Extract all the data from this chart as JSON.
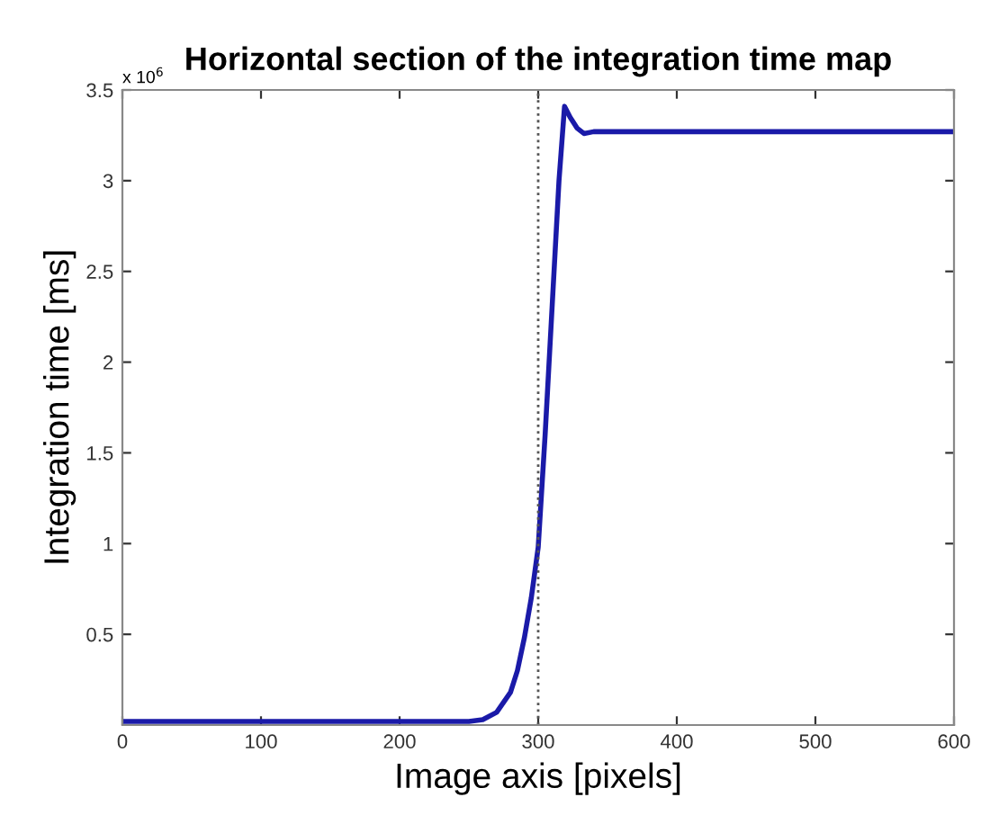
{
  "chart_data": {
    "type": "line",
    "title": "Horizontal section of the integration time map",
    "xlabel": "Image axis [pixels]",
    "ylabel": "Integration time [ms]",
    "annotations": [
      "x 10$^{6}$"
    ],
    "series": [
      {
        "color": "#1a1aa8",
        "x": [
          0,
          100,
          200,
          250,
          260,
          270,
          280,
          285,
          290,
          295,
          300,
          305,
          310,
          315,
          319,
          323,
          328,
          333,
          340,
          400,
          500,
          600
        ],
        "values": [
          0.02,
          0.02,
          0.02,
          0.02,
          0.03,
          0.07,
          0.18,
          0.3,
          0.48,
          0.7,
          0.98,
          1.6,
          2.3,
          3.0,
          3.41,
          3.35,
          3.29,
          3.26,
          3.27,
          3.27,
          3.27,
          3.27
        ]
      }
    ],
    "xlim": [
      0,
      600
    ],
    "ylim": [
      0,
      3.5
    ],
    "xticks": [
      0,
      100,
      200,
      300,
      400,
      500,
      600
    ],
    "yticks": [
      0.5,
      1,
      1.5,
      2,
      2.5,
      3,
      3.5
    ],
    "ref_lines": [
      {
        "axis": "x",
        "value": 300,
        "color": "#555555",
        "line_style": "dotted"
      }
    ],
    "grid": false,
    "legend": false
  }
}
